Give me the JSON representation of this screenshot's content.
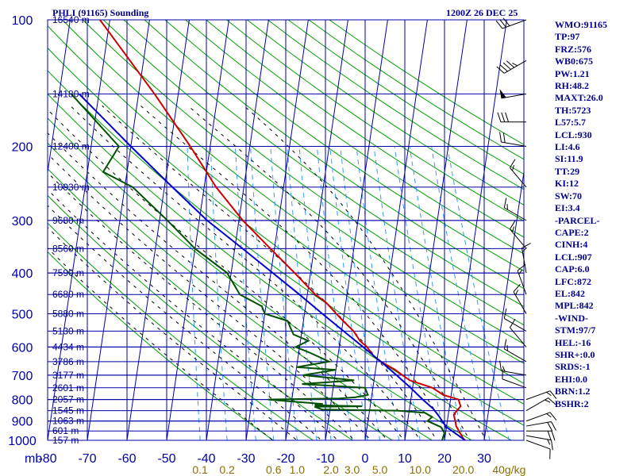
{
  "header": {
    "title_left": "PHLI (91165) Sounding",
    "title_right": "1200Z 26 DEC 25"
  },
  "stats": [
    "WMO:91165",
    "TP:97",
    "FRZ:576",
    "WB0:675",
    "PW:1.21",
    "RH:48.2",
    "MAXT:26.0",
    "TH:5723",
    "L57:5.7",
    "LCL:930",
    "LI:4.6",
    "SI:11.9",
    "TT:29",
    "KI:12",
    "SW:70",
    "EI:3.4",
    "-PARCEL-",
    "CAPE:2",
    "CINH:4",
    "LCL:907",
    "CAP:6.0",
    "LFC:872",
    "EL:842",
    "MPL:842",
    "-WIND-",
    "STM:97/7",
    "HEL:-16",
    "SHR+:0.0",
    "SRDS:-1",
    "EHI:0.0",
    "BRN:1.2",
    "BSHR:2"
  ],
  "colors": {
    "grid": "#0000aa",
    "isotherm": "#0000aa",
    "dry_adiabat": "#00a000",
    "moist_adiabat": "#000000",
    "mixing_ratio": "#3399ff",
    "temperature": "#cc0000",
    "dewpoint": "#005000",
    "parcel": "#0000cc",
    "wind": "#000000"
  },
  "chart_data": {
    "type": "line",
    "chart_kind": "skew-T log-P sounding",
    "y_scale": "log",
    "ylim": [
      1000,
      100
    ],
    "xlim": [
      -80,
      40
    ],
    "pressure_ticks": [
      100,
      200,
      300,
      400,
      500,
      600,
      700,
      800,
      900,
      1000
    ],
    "pressure_axis_unit": "mb",
    "temperature_ticks": [
      -80,
      -70,
      -60,
      -50,
      -40,
      -30,
      -20,
      -10,
      0,
      10,
      20,
      30
    ],
    "height_levels": [
      {
        "p": 100,
        "label": "16540 m"
      },
      {
        "p": 150,
        "label": "14180 m"
      },
      {
        "p": 200,
        "label": "12400 m"
      },
      {
        "p": 250,
        "label": "10930 m"
      },
      {
        "p": 300,
        "label": "9680 m"
      },
      {
        "p": 350,
        "label": "8560 m"
      },
      {
        "p": 400,
        "label": "7590 m"
      },
      {
        "p": 450,
        "label": "6680 m"
      },
      {
        "p": 500,
        "label": "5880 m"
      },
      {
        "p": 550,
        "label": "5130 m"
      },
      {
        "p": 600,
        "label": "4434 m"
      },
      {
        "p": 650,
        "label": "3786 m"
      },
      {
        "p": 700,
        "label": "3177 m"
      },
      {
        "p": 750,
        "label": "2601 m"
      },
      {
        "p": 800,
        "label": "2057 m"
      },
      {
        "p": 850,
        "label": "1545 m"
      },
      {
        "p": 900,
        "label": "1063 m"
      },
      {
        "p": 950,
        "label": "601 m"
      },
      {
        "p": 1000,
        "label": "157 m"
      }
    ],
    "mixing_ratio_labels": [
      {
        "w": 0.1,
        "label": "0.1"
      },
      {
        "w": 0.2,
        "label": "0.2"
      },
      {
        "w": 0.6,
        "label": "0.6"
      },
      {
        "w": 1.0,
        "label": "1.0"
      },
      {
        "w": 2.0,
        "label": "2.0"
      },
      {
        "w": 3.0,
        "label": "3.0"
      },
      {
        "w": 5.0,
        "label": "5.0"
      },
      {
        "w": 10.0,
        "label": "10.0"
      },
      {
        "w": 20.0,
        "label": "20.0"
      },
      {
        "w": 40.0,
        "label": "40g/kg"
      }
    ],
    "series": [
      {
        "key": "temperature",
        "points": [
          [
            1011,
            26.0
          ],
          [
            1000,
            25.0
          ],
          [
            925,
            22.4
          ],
          [
            900,
            22.0
          ],
          [
            870,
            21.4
          ],
          [
            850,
            22.0
          ],
          [
            830,
            22.8
          ],
          [
            800,
            22.0
          ],
          [
            780,
            18.0
          ],
          [
            750,
            15.0
          ],
          [
            720,
            9.0
          ],
          [
            700,
            7.0
          ],
          [
            680,
            5.0
          ],
          [
            650,
            1.0
          ],
          [
            630,
            -1.0
          ],
          [
            600,
            -3.0
          ],
          [
            580,
            -5.0
          ],
          [
            550,
            -7.0
          ],
          [
            520,
            -10.0
          ],
          [
            500,
            -12.0
          ],
          [
            470,
            -15.0
          ],
          [
            450,
            -18.0
          ],
          [
            400,
            -24.0
          ],
          [
            350,
            -31.0
          ],
          [
            300,
            -39.0
          ],
          [
            250,
            -47.0
          ],
          [
            200,
            -55.0
          ],
          [
            150,
            -66.0
          ],
          [
            100,
            -82.5
          ]
        ]
      },
      {
        "key": "dewpoint",
        "points": [
          [
            1011,
            19.0
          ],
          [
            1000,
            19.4
          ],
          [
            960,
            19.7
          ],
          [
            930,
            18.6
          ],
          [
            900,
            15.0
          ],
          [
            880,
            16.0
          ],
          [
            860,
            14.0
          ],
          [
            850,
            7.0
          ],
          [
            845,
            -12.0
          ],
          [
            832,
            -14.0
          ],
          [
            830,
            -2.0
          ],
          [
            825,
            -14.0
          ],
          [
            820,
            -12.0
          ],
          [
            800,
            -26.0
          ],
          [
            795,
            -8.0
          ],
          [
            790,
            -4.0
          ],
          [
            780,
            -1.0
          ],
          [
            750,
            -2.0
          ],
          [
            735,
            -18.0
          ],
          [
            720,
            -5.0
          ],
          [
            700,
            -18.0
          ],
          [
            680,
            -10.0
          ],
          [
            670,
            -20.0
          ],
          [
            650,
            -12.0
          ],
          [
            620,
            -17.0
          ],
          [
            600,
            -21.0
          ],
          [
            580,
            -18.0
          ],
          [
            560,
            -22.0
          ],
          [
            540,
            -23.0
          ],
          [
            520,
            -24.0
          ],
          [
            500,
            -30.0
          ],
          [
            480,
            -31.0
          ],
          [
            450,
            -37.0
          ],
          [
            400,
            -41.0
          ],
          [
            350,
            -50.0
          ],
          [
            300,
            -58.0
          ],
          [
            250,
            -68.0
          ],
          [
            230,
            -76.0
          ],
          [
            200,
            -73.0
          ],
          [
            150,
            -87.0
          ]
        ]
      },
      {
        "key": "parcel",
        "points": [
          [
            1011,
            26.0
          ],
          [
            930,
            20.0
          ],
          [
            907,
            19.0
          ],
          [
            872,
            17.5
          ],
          [
            842,
            16.0
          ],
          [
            800,
            13.0
          ],
          [
            750,
            9.5
          ],
          [
            700,
            5.5
          ],
          [
            650,
            1.0
          ],
          [
            600,
            -4.0
          ],
          [
            550,
            -9.5
          ],
          [
            500,
            -15.5
          ],
          [
            450,
            -22.0
          ],
          [
            400,
            -29.5
          ],
          [
            350,
            -38.0
          ],
          [
            300,
            -48.0
          ],
          [
            250,
            -58.0
          ],
          [
            200,
            -70.0
          ],
          [
            150,
            -85.0
          ]
        ]
      }
    ],
    "wind_barbs": [
      {
        "p": 1000,
        "dir": 110,
        "spd": 10
      },
      {
        "p": 975,
        "dir": 100,
        "spd": 15
      },
      {
        "p": 950,
        "dir": 90,
        "spd": 20
      },
      {
        "p": 925,
        "dir": 80,
        "spd": 20
      },
      {
        "p": 900,
        "dir": 70,
        "spd": 15
      },
      {
        "p": 850,
        "dir": 60,
        "spd": 15
      },
      {
        "p": 800,
        "dir": 70,
        "spd": 15
      },
      {
        "p": 750,
        "dir": 290,
        "spd": 10
      },
      {
        "p": 700,
        "dir": 280,
        "spd": 15
      },
      {
        "p": 650,
        "dir": 300,
        "spd": 15
      },
      {
        "p": 600,
        "dir": 320,
        "spd": 10
      },
      {
        "p": 550,
        "dir": 300,
        "spd": 10
      },
      {
        "p": 500,
        "dir": 330,
        "spd": 15
      },
      {
        "p": 450,
        "dir": 340,
        "spd": 15
      },
      {
        "p": 400,
        "dir": 350,
        "spd": 15
      },
      {
        "p": 350,
        "dir": 320,
        "spd": 15
      },
      {
        "p": 300,
        "dir": 300,
        "spd": 15
      },
      {
        "p": 250,
        "dir": 320,
        "spd": 15
      },
      {
        "p": 200,
        "dir": 280,
        "spd": 20
      },
      {
        "p": 175,
        "dir": 270,
        "spd": 30
      },
      {
        "p": 150,
        "dir": 260,
        "spd": 50
      },
      {
        "p": 125,
        "dir": 240,
        "spd": 45
      },
      {
        "p": 100,
        "dir": 250,
        "spd": 30
      }
    ]
  }
}
